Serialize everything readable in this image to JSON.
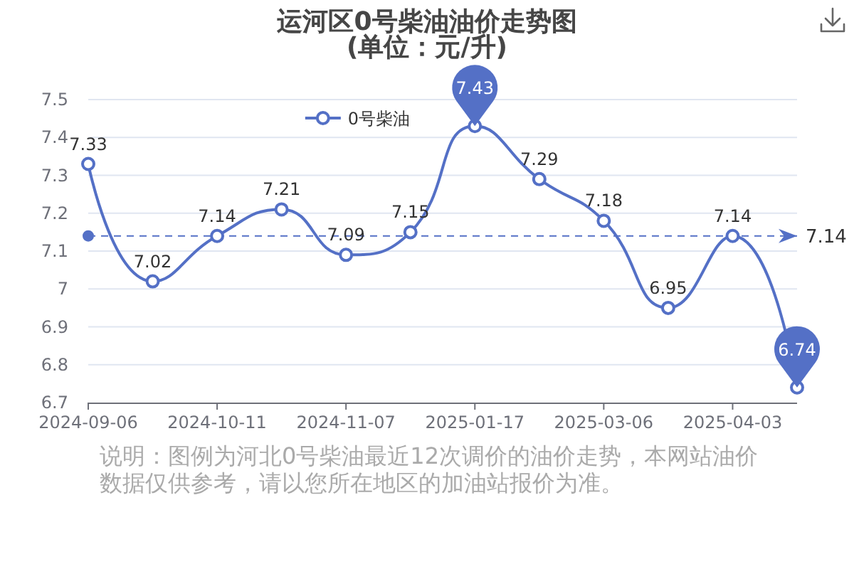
{
  "chart_data": {
    "type": "line",
    "title": "运河区0号柴油油价走势图",
    "subtitle": "(单位：元/升)",
    "categories": [
      "2024-09-06",
      null,
      "2024-10-11",
      null,
      "2024-11-07",
      null,
      "2025-01-17",
      null,
      "2025-03-06",
      null,
      "2025-04-03",
      null
    ],
    "series": [
      {
        "name": "0号柴油",
        "color": "#5470c6",
        "values": [
          7.33,
          7.02,
          7.14,
          7.21,
          7.09,
          7.15,
          7.43,
          7.29,
          7.18,
          6.95,
          7.14,
          6.74
        ]
      }
    ],
    "ylim": [
      6.7,
      7.5
    ],
    "yticks": [
      6.7,
      6.8,
      6.9,
      7,
      7.1,
      7.2,
      7.3,
      7.4,
      7.5
    ],
    "grid": "y",
    "legend": "top",
    "marker": "circle",
    "line_style": "solid",
    "data_labels": true,
    "ref_lines": [
      {
        "axis": "y",
        "value": 7.14,
        "label": "7.14",
        "color": "#5470c6",
        "line_style": "dashed"
      }
    ],
    "annotations": [
      "说明：图例为河北0号柴油最近12次调价的油价走势，本网站油价数据仅供参考，请以您所在地区的加油站报价为准。"
    ]
  }
}
